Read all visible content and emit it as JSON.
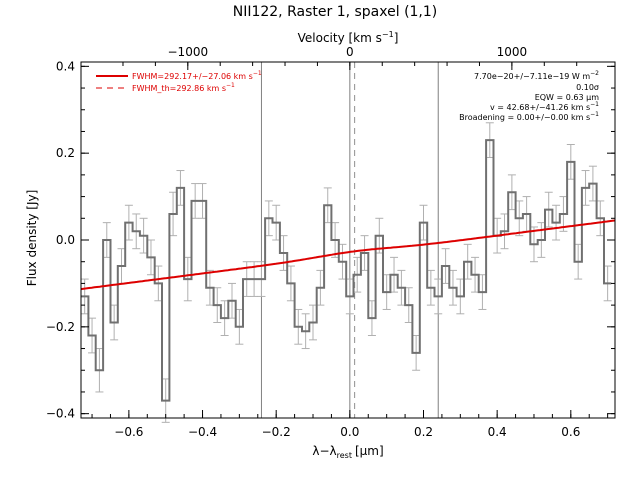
{
  "chart_data": {
    "type": "line",
    "title": "NII122, Raster 1, spaxel (1,1)",
    "xlabel": "λ−λ",
    "xlabel_sub": "rest",
    "xlabel_unit": "[μm]",
    "ylabel": "Flux density [Jy]",
    "top_axis_label": "Velocity [km s",
    "top_axis_label_sup": "−1",
    "top_axis_label_close": "]",
    "xlim": [
      -0.73,
      0.72
    ],
    "ylim": [
      -0.41,
      0.41
    ],
    "x_ticks": [
      {
        "value": -0.6,
        "label": "−0.6"
      },
      {
        "value": -0.4,
        "label": "−0.4"
      },
      {
        "value": -0.2,
        "label": "−0.2"
      },
      {
        "value": 0.0,
        "label": "0.0"
      },
      {
        "value": 0.2,
        "label": "0.2"
      },
      {
        "value": 0.4,
        "label": "0.4"
      },
      {
        "value": 0.6,
        "label": "0.6"
      }
    ],
    "y_ticks": [
      {
        "value": -0.4,
        "label": "−0.4"
      },
      {
        "value": -0.2,
        "label": "−0.2"
      },
      {
        "value": 0.0,
        "label": "0.0"
      },
      {
        "value": 0.2,
        "label": "0.2"
      },
      {
        "value": 0.4,
        "label": "0.4"
      }
    ],
    "top_ticks": [
      {
        "value": -0.44,
        "label": "−1000"
      },
      {
        "value": 0.0,
        "label": "0"
      },
      {
        "value": 0.44,
        "label": "1000"
      }
    ],
    "vertical_lines": [
      -0.24,
      0.0,
      0.24
    ],
    "dashed_line_x": 0.013,
    "spectrum_color": "#707070",
    "fit_color": "#dd0000",
    "spectrum": {
      "x": [
        -0.72,
        -0.7,
        -0.68,
        -0.66,
        -0.64,
        -0.62,
        -0.6,
        -0.58,
        -0.56,
        -0.54,
        -0.52,
        -0.5,
        -0.48,
        -0.46,
        -0.44,
        -0.42,
        -0.4,
        -0.38,
        -0.36,
        -0.34,
        -0.32,
        -0.3,
        -0.28,
        -0.26,
        -0.24,
        -0.22,
        -0.2,
        -0.18,
        -0.16,
        -0.14,
        -0.12,
        -0.1,
        -0.08,
        -0.06,
        -0.04,
        -0.02,
        0.0,
        0.02,
        0.04,
        0.06,
        0.08,
        0.1,
        0.12,
        0.14,
        0.16,
        0.18,
        0.2,
        0.22,
        0.24,
        0.26,
        0.28,
        0.3,
        0.32,
        0.34,
        0.36,
        0.38,
        0.4,
        0.42,
        0.44,
        0.46,
        0.48,
        0.5,
        0.52,
        0.54,
        0.56,
        0.58,
        0.6,
        0.62,
        0.64,
        0.66,
        0.68,
        0.7
      ],
      "y": [
        -0.13,
        -0.22,
        -0.3,
        0.0,
        -0.19,
        -0.06,
        0.04,
        0.02,
        0.01,
        -0.04,
        -0.1,
        -0.37,
        0.06,
        0.12,
        -0.09,
        0.09,
        0.09,
        -0.11,
        -0.15,
        -0.18,
        -0.14,
        -0.2,
        -0.09,
        -0.09,
        -0.09,
        0.05,
        0.04,
        -0.03,
        -0.1,
        -0.2,
        -0.21,
        -0.19,
        -0.11,
        0.08,
        0.0,
        -0.05,
        -0.13,
        -0.08,
        -0.03,
        -0.18,
        0.01,
        -0.12,
        -0.08,
        -0.11,
        -0.15,
        -0.26,
        0.04,
        -0.11,
        -0.13,
        -0.06,
        -0.11,
        -0.13,
        -0.05,
        -0.08,
        -0.12,
        0.23,
        0.01,
        0.02,
        0.11,
        0.05,
        0.06,
        -0.01,
        0.0,
        0.07,
        0.04,
        0.06,
        0.18,
        -0.05,
        0.12,
        0.13,
        0.05,
        -0.1
      ],
      "err": [
        0.04,
        0.04,
        0.05,
        0.04,
        0.04,
        0.04,
        0.04,
        0.04,
        0.04,
        0.04,
        0.04,
        0.05,
        0.05,
        0.04,
        0.05,
        0.04,
        0.04,
        0.04,
        0.04,
        0.04,
        0.04,
        0.04,
        0.04,
        0.04,
        0.04,
        0.04,
        0.04,
        0.04,
        0.04,
        0.04,
        0.04,
        0.04,
        0.04,
        0.04,
        0.04,
        0.04,
        0.04,
        0.04,
        0.04,
        0.04,
        0.04,
        0.04,
        0.04,
        0.04,
        0.04,
        0.04,
        0.04,
        0.04,
        0.04,
        0.04,
        0.04,
        0.04,
        0.04,
        0.04,
        0.04,
        0.04,
        0.04,
        0.04,
        0.04,
        0.04,
        0.04,
        0.04,
        0.04,
        0.04,
        0.04,
        0.04,
        0.04,
        0.04,
        0.04,
        0.04,
        0.04,
        0.04
      ]
    },
    "fit": {
      "x_start": -0.73,
      "y_start": -0.113,
      "x_end": 0.72,
      "y_end": 0.045,
      "line_center": 0.013,
      "line_amplitude": 0.006,
      "line_sigma": 0.1
    },
    "legend": [
      {
        "label": "FWHM=292.17+/−27.06 km s",
        "sup": "−1",
        "style": "solid"
      },
      {
        "label": "FWHM_th=292.86 km s",
        "sup": "−1",
        "style": "dashed"
      }
    ],
    "annotations": [
      {
        "text": "7.70e−20+/−7.11e−19 W m",
        "sup": "−2"
      },
      {
        "text": "0.10σ",
        "sup": ""
      },
      {
        "text": "EQW = 0.63 μm",
        "sup": ""
      },
      {
        "text": "v = 42.68+/−41.26 km s",
        "sup": "−1"
      },
      {
        "text": "Broadening = 0.00+/−0.00 km s",
        "sup": "−1"
      }
    ]
  }
}
